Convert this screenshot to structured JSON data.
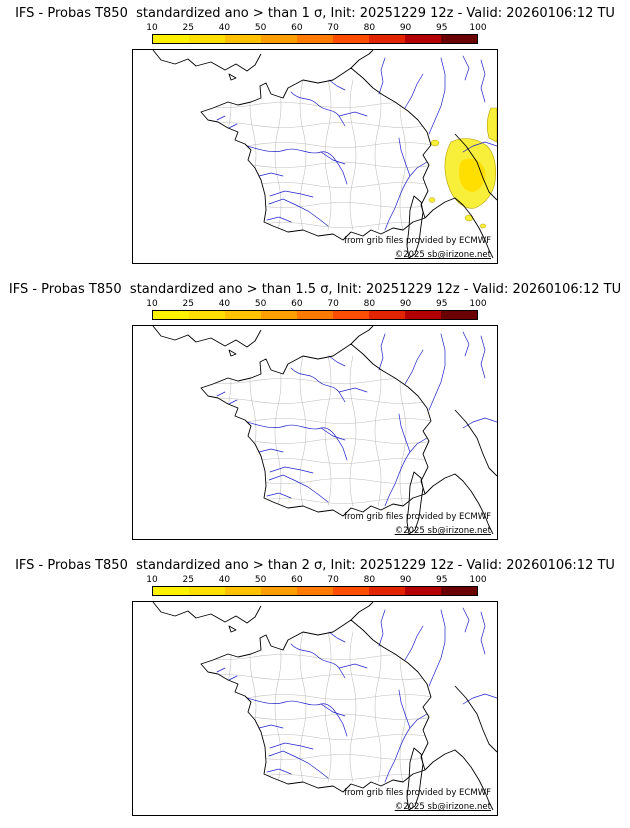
{
  "colorbar": {
    "ticks": [
      "10",
      "25",
      "40",
      "50",
      "60",
      "70",
      "80",
      "90",
      "95",
      "100"
    ],
    "segment_colors": [
      "#fff200",
      "#ffdf00",
      "#ffc100",
      "#ffa000",
      "#ff7a00",
      "#ff4d00",
      "#e32400",
      "#b30000",
      "#6b0000"
    ]
  },
  "panels": [
    {
      "threshold_sigma": "1",
      "title": "IFS - Probas T850  standardized ano > than 1 σ, Init: 20251229 12z - Valid: 20260106:12 TU",
      "credit": "from grib files provided by ECMWF",
      "copyright": "©2025 sb@irizone.net",
      "has_probability_area": true
    },
    {
      "threshold_sigma": "1.5",
      "title": "IFS - Probas T850  standardized ano > than 1.5 σ, Init: 20251229 12z - Valid: 20260106:12 TU",
      "credit": "from grib files provided by ECMWF",
      "copyright": "©2025 sb@irizone.net",
      "has_probability_area": false
    },
    {
      "threshold_sigma": "2",
      "title": "IFS - Probas T850  standardized ano > than 2 σ, Init: 20251229 12z - Valid: 20260106:12 TU",
      "credit": "from grib files provided by ECMWF",
      "copyright": "©2025 sb@irizone.net",
      "has_probability_area": false
    }
  ],
  "map_colors": {
    "coastline": "#000000",
    "rivers": "#2222cc",
    "departments": "#bdbdbd",
    "probability_fill": "#f7ef3a",
    "probability_fill_inner": "#ffdf00",
    "probability_contour": "#b89b00"
  }
}
